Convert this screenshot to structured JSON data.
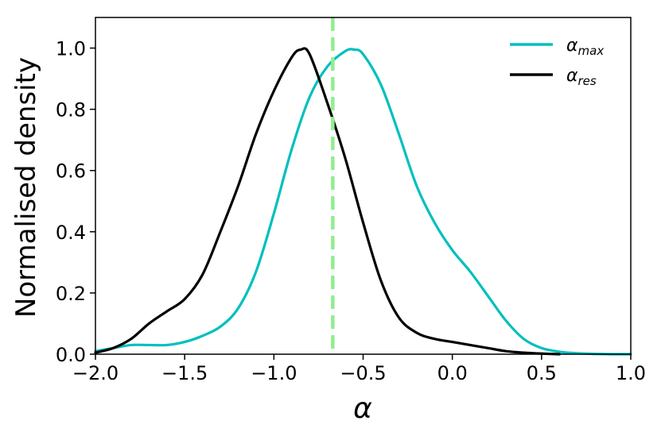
{
  "chart_data": {
    "type": "line",
    "title": "",
    "xlabel": "α",
    "ylabel": "Normalised density",
    "xlim": [
      -2.0,
      1.0
    ],
    "ylim": [
      0.0,
      1.1
    ],
    "x_ticks": [
      "−2.0",
      "−1.5",
      "−1.0",
      "−0.5",
      "0.0",
      "0.5",
      "1.0"
    ],
    "y_ticks": [
      "0.0",
      "0.2",
      "0.4",
      "0.6",
      "0.8",
      "1.0"
    ],
    "legend_position": "top-right",
    "vline": {
      "x": -0.67,
      "color": "#90ee90",
      "style": "dashed"
    },
    "series": [
      {
        "name": "α_max",
        "legend_main": "α",
        "legend_sub": "max",
        "color": "#00bfbf",
        "x": [
          -2.0,
          -1.9,
          -1.8,
          -1.7,
          -1.6,
          -1.5,
          -1.4,
          -1.3,
          -1.2,
          -1.1,
          -1.0,
          -0.9,
          -0.8,
          -0.7,
          -0.6,
          -0.55,
          -0.5,
          -0.4,
          -0.3,
          -0.2,
          -0.1,
          0.0,
          0.1,
          0.2,
          0.3,
          0.4,
          0.5,
          0.6,
          0.7,
          0.8,
          0.9,
          1.0
        ],
        "values": [
          0.01,
          0.02,
          0.03,
          0.03,
          0.03,
          0.04,
          0.06,
          0.09,
          0.15,
          0.27,
          0.46,
          0.67,
          0.84,
          0.94,
          0.99,
          0.995,
          0.98,
          0.88,
          0.72,
          0.55,
          0.43,
          0.34,
          0.27,
          0.19,
          0.11,
          0.05,
          0.02,
          0.008,
          0.003,
          0.001,
          0.0,
          0.0
        ]
      },
      {
        "name": "α_res",
        "legend_main": "α",
        "legend_sub": "res",
        "color": "#000000",
        "x": [
          -2.0,
          -1.9,
          -1.8,
          -1.7,
          -1.6,
          -1.5,
          -1.4,
          -1.3,
          -1.2,
          -1.1,
          -1.0,
          -0.9,
          -0.85,
          -0.8,
          -0.7,
          -0.6,
          -0.5,
          -0.4,
          -0.3,
          -0.2,
          -0.1,
          0.0,
          0.1,
          0.2,
          0.3,
          0.4,
          0.5,
          0.6
        ],
        "values": [
          0.005,
          0.02,
          0.05,
          0.1,
          0.14,
          0.18,
          0.26,
          0.4,
          0.55,
          0.72,
          0.86,
          0.97,
          0.995,
          0.98,
          0.82,
          0.64,
          0.43,
          0.24,
          0.12,
          0.07,
          0.05,
          0.04,
          0.03,
          0.02,
          0.01,
          0.005,
          0.002,
          0.0
        ]
      }
    ]
  }
}
